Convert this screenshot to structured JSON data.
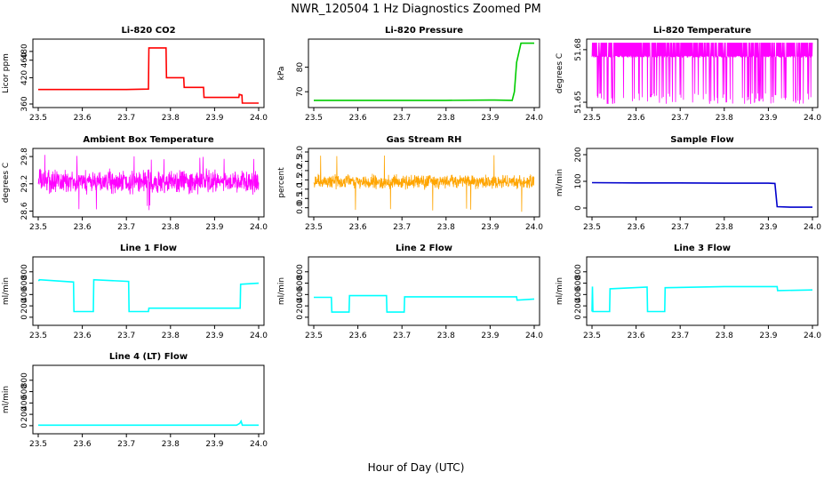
{
  "figure": {
    "title": "NWR_120504  1 Hz Diagnostics Zoomed PM",
    "xlabel": "Hour of Day (UTC)"
  },
  "chart_data": [
    {
      "id": "co2",
      "type": "line",
      "title": "Li-820 CO2",
      "ylabel": "Licor ppm",
      "color": "#ff0000",
      "xlim": [
        23.5,
        24.0
      ],
      "ylim": [
        360,
        500
      ],
      "xticks": [
        "23.5",
        "23.6",
        "23.7",
        "23.8",
        "23.9",
        "24.0"
      ],
      "yticks": [
        "360",
        "420",
        "460",
        "480"
      ],
      "ytick_values": [
        360,
        420,
        460,
        480
      ],
      "series": [
        {
          "x": [
            23.5,
            23.55,
            23.6,
            23.65,
            23.7,
            23.75,
            23.751,
            23.79,
            23.791,
            23.83,
            23.831,
            23.875,
            23.876,
            23.955,
            23.956,
            23.962,
            23.963,
            24.0
          ],
          "y": [
            393,
            393,
            393,
            393,
            393,
            394,
            488,
            488,
            420,
            420,
            398,
            398,
            375,
            375,
            382,
            380,
            362,
            362
          ]
        }
      ]
    },
    {
      "id": "pressure",
      "type": "line",
      "title": "Li-820 Pressure",
      "ylabel": "kPa",
      "color": "#00cc00",
      "xlim": [
        23.5,
        24.0
      ],
      "ylim": [
        65,
        90
      ],
      "xticks": [
        "23.5",
        "23.6",
        "23.7",
        "23.8",
        "23.9",
        "24.0"
      ],
      "yticks": [
        "70",
        "80"
      ],
      "ytick_values": [
        70,
        80
      ],
      "series": [
        {
          "x": [
            23.5,
            23.6,
            23.7,
            23.8,
            23.9,
            23.91,
            23.95,
            23.955,
            23.96,
            23.97,
            23.99,
            24.0
          ],
          "y": [
            66.5,
            66.5,
            66.5,
            66.5,
            66.6,
            66.6,
            66.5,
            70,
            82,
            89.8,
            89.8,
            89.8
          ]
        }
      ]
    },
    {
      "id": "temperature",
      "type": "line",
      "title": "Li-820 Temperature",
      "ylabel": "degrees C",
      "color": "#ff00ff",
      "xlim": [
        23.5,
        24.0
      ],
      "ylim": [
        51.649,
        51.684
      ],
      "xticks": [
        "23.5",
        "23.6",
        "23.7",
        "23.8",
        "23.9",
        "24.0"
      ],
      "yticks": [
        "51.65",
        "51.68"
      ],
      "ytick_values": [
        51.65,
        51.68
      ],
      "band": {
        "hi": 51.684,
        "lo": 51.6755,
        "dip_min": 51.649,
        "dip_rate": 0.12
      }
    },
    {
      "id": "ambient",
      "type": "line",
      "title": "Ambient Box Temperature",
      "ylabel": "degrees C",
      "color": "#ff00ff",
      "xlim": [
        23.5,
        24.0
      ],
      "ylim": [
        28.55,
        29.9
      ],
      "xticks": [
        "23.5",
        "23.6",
        "23.7",
        "23.8",
        "23.9",
        "24.0"
      ],
      "yticks": [
        "28.6",
        "29.2",
        "29.8"
      ],
      "ytick_values": [
        28.6,
        29.2,
        29.8
      ],
      "noise": {
        "mean": 29.25,
        "amp": 0.3,
        "spike_lo": 28.6,
        "spike_hi": 29.85
      }
    },
    {
      "id": "rh",
      "type": "line",
      "title": "Gas Stream RH",
      "ylabel": "percent",
      "color": "#ffa500",
      "xlim": [
        23.5,
        24.0
      ],
      "ylim": [
        -0.3,
        3.0
      ],
      "xticks": [
        "23.5",
        "23.6",
        "23.7",
        "23.8",
        "23.9",
        "24.0"
      ],
      "yticks": [
        "0.0",
        "0.5",
        "1.0",
        "1.5",
        "2.0",
        "2.5",
        "3.0"
      ],
      "ytick_values": [
        0,
        0.5,
        1.0,
        1.5,
        2.0,
        2.5,
        3.0
      ],
      "noise": {
        "mean": 1.4,
        "amp": 0.45,
        "spike_lo": -0.3,
        "spike_hi": 2.9
      }
    },
    {
      "id": "sample",
      "type": "line",
      "title": "Sample Flow",
      "ylabel": "ml/min",
      "color": "#0000cc",
      "xlim": [
        23.5,
        24.0
      ],
      "ylim": [
        -20,
        210
      ],
      "xticks": [
        "23.5",
        "23.6",
        "23.7",
        "23.8",
        "23.9",
        "24.0"
      ],
      "yticks": [
        "0",
        "100",
        "200"
      ],
      "ytick_values": [
        0,
        100,
        200
      ],
      "series": [
        {
          "x": [
            23.5,
            23.6,
            23.7,
            23.8,
            23.9,
            23.915,
            23.92,
            23.95,
            24.0
          ],
          "y": [
            95,
            94,
            94,
            93,
            93,
            92,
            5,
            3,
            3
          ]
        }
      ]
    },
    {
      "id": "line1",
      "type": "line",
      "title": "Line 1 Flow",
      "ylabel": "ml/min",
      "color": "#00ffff",
      "xlim": [
        23.5,
        24.0
      ],
      "ylim": [
        -80,
        1000
      ],
      "xticks": [
        "23.5",
        "23.6",
        "23.7",
        "23.8",
        "23.9",
        "24.0"
      ],
      "yticks": [
        "0",
        "200",
        "400",
        "600",
        "800"
      ],
      "ytick_values": [
        0,
        200,
        400,
        600,
        800
      ],
      "series": [
        {
          "x": [
            23.5,
            23.502,
            23.503,
            23.58,
            23.581,
            23.625,
            23.626,
            23.705,
            23.706,
            23.75,
            23.751,
            23.958,
            23.959,
            24.0
          ],
          "y": [
            650,
            650,
            660,
            620,
            100,
            100,
            660,
            630,
            100,
            100,
            160,
            160,
            580,
            600
          ]
        }
      ]
    },
    {
      "id": "line2",
      "type": "line",
      "title": "Line 2 Flow",
      "ylabel": "ml/min",
      "color": "#00ffff",
      "xlim": [
        23.5,
        24.0
      ],
      "ylim": [
        -80,
        1000
      ],
      "xticks": [
        "23.5",
        "23.6",
        "23.7",
        "23.8",
        "23.9",
        "24.0"
      ],
      "yticks": [
        "0",
        "200",
        "400",
        "600",
        "800"
      ],
      "ytick_values": [
        0,
        200,
        400,
        600,
        800
      ],
      "series": [
        {
          "x": [
            23.5,
            23.54,
            23.541,
            23.58,
            23.581,
            23.665,
            23.666,
            23.705,
            23.706,
            23.96,
            23.961,
            24.0
          ],
          "y": [
            350,
            350,
            90,
            90,
            380,
            380,
            90,
            90,
            360,
            360,
            300,
            320
          ]
        }
      ]
    },
    {
      "id": "line3",
      "type": "line",
      "title": "Line 3 Flow",
      "ylabel": "ml/min",
      "color": "#00ffff",
      "xlim": [
        23.5,
        24.0
      ],
      "ylim": [
        -80,
        1000
      ],
      "xticks": [
        "23.5",
        "23.6",
        "23.7",
        "23.8",
        "23.9",
        "24.0"
      ],
      "yticks": [
        "0",
        "200",
        "400",
        "600",
        "800"
      ],
      "ytick_values": [
        0,
        200,
        400,
        600,
        800
      ],
      "series": [
        {
          "x": [
            23.5,
            23.501,
            23.502,
            23.54,
            23.541,
            23.625,
            23.626,
            23.665,
            23.666,
            23.8,
            23.92,
            23.921,
            24.0
          ],
          "y": [
            100,
            540,
            100,
            100,
            500,
            530,
            100,
            100,
            520,
            540,
            540,
            470,
            480
          ]
        }
      ]
    },
    {
      "id": "line4",
      "type": "line",
      "title": "Line 4 (LT) Flow",
      "ylabel": "ml/min",
      "color": "#00ffff",
      "xlim": [
        23.5,
        24.0
      ],
      "ylim": [
        -80,
        1000
      ],
      "xticks": [
        "23.5",
        "23.6",
        "23.7",
        "23.8",
        "23.9",
        "24.0"
      ],
      "yticks": [
        "0",
        "200",
        "400",
        "600",
        "800"
      ],
      "ytick_values": [
        0,
        200,
        400,
        600,
        800
      ],
      "series": [
        {
          "x": [
            23.5,
            23.7,
            23.95,
            23.957,
            23.96,
            23.963,
            24.0
          ],
          "y": [
            10,
            10,
            10,
            40,
            80,
            10,
            10
          ]
        }
      ]
    }
  ]
}
